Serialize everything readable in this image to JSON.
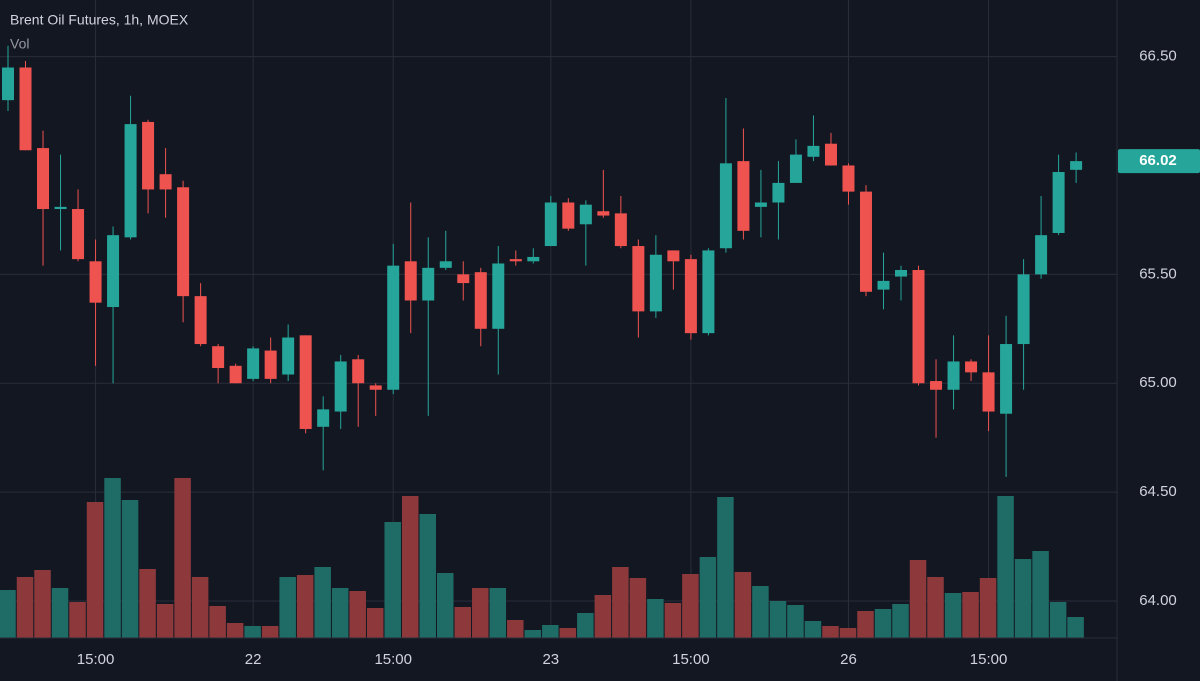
{
  "chart_data": {
    "type": "candlestick",
    "title": "Brent Oil Futures, 1h, MOEX",
    "volume_label": "Vol",
    "categories": [
      null,
      null,
      null,
      null,
      null,
      "15:00",
      null,
      null,
      null,
      null,
      null,
      null,
      null,
      null,
      "22",
      null,
      null,
      null,
      null,
      null,
      null,
      null,
      "15:00",
      null,
      null,
      null,
      null,
      null,
      null,
      null,
      null,
      "23",
      null,
      null,
      null,
      null,
      null,
      null,
      null,
      "15:00",
      null,
      null,
      null,
      null,
      null,
      null,
      null,
      null,
      "26",
      null,
      null,
      null,
      null,
      null,
      null,
      null,
      "15:00",
      null,
      null,
      null,
      null,
      null
    ],
    "open": [
      66.3,
      66.45,
      66.08,
      65.8,
      65.8,
      65.56,
      65.35,
      65.67,
      66.2,
      65.96,
      65.9,
      65.4,
      65.17,
      65.08,
      65.02,
      65.15,
      65.04,
      65.22,
      64.8,
      64.87,
      65.11,
      64.99,
      64.97,
      65.56,
      65.38,
      65.53,
      65.5,
      65.51,
      65.25,
      65.57,
      65.56,
      65.63,
      65.83,
      65.73,
      65.79,
      65.78,
      65.63,
      65.33,
      65.61,
      65.57,
      65.23,
      65.62,
      66.02,
      65.81,
      65.83,
      65.92,
      66.04,
      66.1,
      66.0,
      65.88,
      65.43,
      65.49,
      65.52,
      65.01,
      64.97,
      65.1,
      65.05,
      64.86,
      65.18,
      65.5,
      65.69,
      65.98
    ],
    "high": [
      66.55,
      66.48,
      66.16,
      66.05,
      65.89,
      65.66,
      65.72,
      66.32,
      66.21,
      66.08,
      65.93,
      65.46,
      65.18,
      65.09,
      65.17,
      65.21,
      65.27,
      65.22,
      64.94,
      65.13,
      65.13,
      65.0,
      65.64,
      65.83,
      65.67,
      65.7,
      65.56,
      65.53,
      65.63,
      65.61,
      65.62,
      65.86,
      65.85,
      65.84,
      65.98,
      65.86,
      65.66,
      65.68,
      65.61,
      65.59,
      65.62,
      66.31,
      66.17,
      65.98,
      66.02,
      66.12,
      66.23,
      66.15,
      66.01,
      65.91,
      65.6,
      65.54,
      65.54,
      65.11,
      65.22,
      65.11,
      65.22,
      65.31,
      65.57,
      65.86,
      66.05,
      66.06
    ],
    "low": [
      66.25,
      66.07,
      65.54,
      65.61,
      65.56,
      65.08,
      65.0,
      65.66,
      65.78,
      65.76,
      65.28,
      65.17,
      65.0,
      65.0,
      65.01,
      65.0,
      65.01,
      64.77,
      64.6,
      64.79,
      64.8,
      64.85,
      64.95,
      65.23,
      64.85,
      65.52,
      65.38,
      65.17,
      65.04,
      65.54,
      65.55,
      65.63,
      65.7,
      65.54,
      65.76,
      65.62,
      65.21,
      65.3,
      65.43,
      65.2,
      65.22,
      65.6,
      65.66,
      65.67,
      65.66,
      65.92,
      66.02,
      66.0,
      65.82,
      65.4,
      65.34,
      65.38,
      64.99,
      64.75,
      64.88,
      65.01,
      64.78,
      64.57,
      64.97,
      65.48,
      65.68,
      65.92
    ],
    "close": [
      66.45,
      66.07,
      65.8,
      65.81,
      65.57,
      65.37,
      65.68,
      66.19,
      65.89,
      65.89,
      65.4,
      65.18,
      65.07,
      65.0,
      65.16,
      65.02,
      65.21,
      64.79,
      64.88,
      65.1,
      65.0,
      64.97,
      65.54,
      65.38,
      65.53,
      65.56,
      65.46,
      65.25,
      65.55,
      65.56,
      65.58,
      65.83,
      65.71,
      65.82,
      65.77,
      65.63,
      65.33,
      65.59,
      65.56,
      65.23,
      65.61,
      66.01,
      65.7,
      65.83,
      65.92,
      66.05,
      66.09,
      66.0,
      65.88,
      65.42,
      65.47,
      65.52,
      65.0,
      64.97,
      65.1,
      65.05,
      64.87,
      65.18,
      65.5,
      65.68,
      65.97,
      66.02
    ],
    "volume": [
      48,
      61,
      68,
      50,
      36,
      136,
      160,
      138,
      69,
      34,
      160,
      61,
      32,
      15,
      12,
      12,
      61,
      63,
      71,
      50,
      47,
      30,
      116,
      142,
      124,
      65,
      31,
      50,
      50,
      18,
      8,
      13,
      10,
      25,
      43,
      71,
      60,
      39,
      35,
      64,
      81,
      141,
      66,
      52,
      37,
      33,
      17,
      12,
      10,
      27,
      29,
      34,
      78,
      61,
      45,
      46,
      60,
      142,
      79,
      87,
      36,
      21
    ],
    "up_color": "#26a69a",
    "down_color": "#ef5350",
    "volume_up_color": "#1f6b66",
    "volume_down_color": "#8d393b",
    "ylim": [
      63.83,
      66.76
    ],
    "yticks": [
      {
        "value": 64,
        "label": "64.00"
      },
      {
        "value": 64.5,
        "label": "64.50"
      },
      {
        "value": 65,
        "label": "65.00"
      },
      {
        "value": 65.5,
        "label": "65.50"
      },
      {
        "value": 66.5,
        "label": "66.50"
      }
    ],
    "last_price": 66.02,
    "grid": true
  }
}
